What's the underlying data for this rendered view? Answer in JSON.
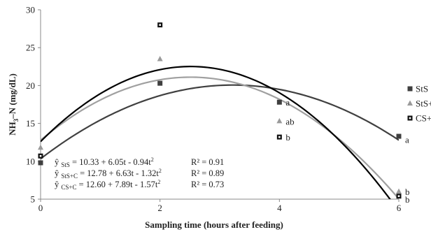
{
  "chart_data": {
    "type": "scatter",
    "xlabel": "Sampling time (hours after feeding)",
    "ylabel_main": "NH",
    "ylabel_sub": "3",
    "ylabel_rest": "–N (mg/dL)",
    "xlim": [
      0,
      6
    ],
    "ylim": [
      5,
      30
    ],
    "xticks": [
      0,
      2,
      4,
      6
    ],
    "yticks": [
      5,
      10,
      15,
      20,
      25,
      30
    ],
    "legend_position": "right",
    "series": [
      {
        "name": "StS",
        "marker": "square",
        "color": "#3f3f3f",
        "points": [
          [
            0,
            9.8
          ],
          [
            2,
            20.3
          ],
          [
            4,
            17.8
          ],
          [
            6,
            13.3
          ]
        ],
        "fit": {
          "a": 10.33,
          "b": 6.05,
          "c": -0.94
        },
        "fit_color": "#404040"
      },
      {
        "name": "StS+C",
        "marker": "triangle",
        "color": "#9a9a9a",
        "points": [
          [
            0,
            11.8
          ],
          [
            2,
            23.5
          ],
          [
            4,
            15.3
          ],
          [
            6,
            6.0
          ]
        ],
        "fit": {
          "a": 12.78,
          "b": 6.63,
          "c": -1.32
        },
        "fit_color": "#a0a0a0"
      },
      {
        "name": "CS+C",
        "marker": "square-inset",
        "color": "#111111",
        "points": [
          [
            0,
            10.7
          ],
          [
            2,
            28.0
          ],
          [
            4,
            13.2
          ],
          [
            6,
            5.4
          ]
        ],
        "fit": {
          "a": 12.6,
          "b": 7.89,
          "c": -1.57
        },
        "fit_color": "#000000"
      }
    ],
    "annotations": [
      {
        "text": "a",
        "x": 4,
        "y": 17.8
      },
      {
        "text": "ab",
        "x": 4,
        "y": 15.3
      },
      {
        "text": "b",
        "x": 4,
        "y": 13.2
      },
      {
        "text": "a",
        "x": 6,
        "y": 12.9
      },
      {
        "text": "b",
        "x": 6,
        "y": 6.0
      },
      {
        "text": "b",
        "x": 6,
        "y": 5.0
      }
    ],
    "equations": [
      {
        "yhat": "ŷ",
        "sub": "StS",
        "expr": "= 10.33 + 6.05t - 0.94t",
        "r2": "R² = 0.91"
      },
      {
        "yhat": "ŷ",
        "sub": "StS+C",
        "expr": "= 12.78 + 6.63t - 1.32t",
        "r2": "R² = 0.89"
      },
      {
        "yhat": "ŷ",
        "sub": "CS+C",
        "expr": "= 12.60 + 7.89t - 1.57t",
        "r2": "R² = 0.73"
      }
    ],
    "equation_power": "2"
  }
}
